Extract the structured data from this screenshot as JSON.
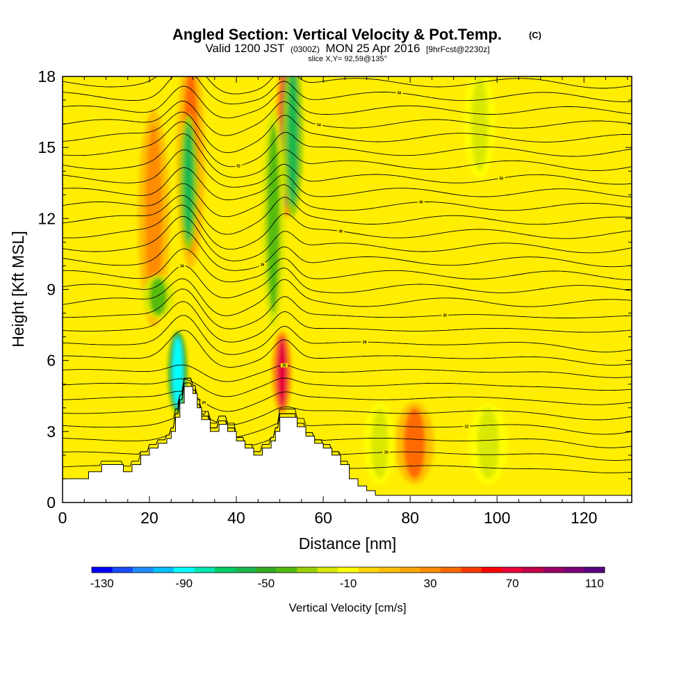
{
  "header": {
    "title": "Angled Section: Vertical Velocity & Pot.Temp.",
    "title_mark": "(C)",
    "valid_prefix": "Valid 1200 JST",
    "valid_zulu": "(0300Z)",
    "valid_date": "MON 25 Apr 2016",
    "forecast": "[9hrFcst@2230z]",
    "slice": "slice X,Y= 92,59@135°"
  },
  "chart_data": {
    "type": "heatmap",
    "xlabel": "Distance [nm]",
    "ylabel": "Height [Kft MSL]",
    "xlim": [
      0,
      131
    ],
    "ylim": [
      0,
      18
    ],
    "x_ticks": [
      "0",
      "20",
      "40",
      "60",
      "80",
      "100",
      "120"
    ],
    "y_ticks": [
      "0",
      "3",
      "6",
      "9",
      "12",
      "15",
      "18"
    ],
    "grid": false,
    "colorbar": {
      "title": "Vertical Velocity [cm/s]",
      "labels": [
        "-130",
        "-90",
        "-50",
        "-10",
        "30",
        "70",
        "110"
      ],
      "min": -130,
      "step": 10,
      "colors": [
        "#0000ff",
        "#1a4cff",
        "#1f8cff",
        "#00bfff",
        "#00ffff",
        "#00e5b0",
        "#00cc66",
        "#1ab84d",
        "#33aa22",
        "#55bb11",
        "#99d000",
        "#d9e800",
        "#ffff00",
        "#ffd700",
        "#ffbf00",
        "#ffa500",
        "#ff8c00",
        "#ff6a00",
        "#ff3a00",
        "#ff0000",
        "#e6003a",
        "#c0004a",
        "#990066",
        "#7a0077",
        "#5a0080"
      ]
    },
    "terrain": [
      [
        0,
        1.0
      ],
      [
        5,
        1.0
      ],
      [
        6,
        1.3
      ],
      [
        9,
        1.6
      ],
      [
        12,
        1.6
      ],
      [
        14,
        1.3
      ],
      [
        16,
        1.6
      ],
      [
        18,
        2.0
      ],
      [
        20,
        2.3
      ],
      [
        22,
        2.5
      ],
      [
        24,
        2.7
      ],
      [
        25,
        3.0
      ],
      [
        26,
        3.6
      ],
      [
        27,
        4.2
      ],
      [
        28,
        4.9
      ],
      [
        30,
        4.6
      ],
      [
        31,
        4.0
      ],
      [
        32,
        3.5
      ],
      [
        34,
        3.0
      ],
      [
        36,
        3.3
      ],
      [
        38,
        3.0
      ],
      [
        40,
        2.6
      ],
      [
        42,
        2.3
      ],
      [
        44,
        2.0
      ],
      [
        46,
        2.3
      ],
      [
        48,
        2.6
      ],
      [
        49,
        3.0
      ],
      [
        50,
        3.6
      ],
      [
        53,
        3.6
      ],
      [
        54,
        3.2
      ],
      [
        56,
        2.8
      ],
      [
        58,
        2.5
      ],
      [
        60,
        2.3
      ],
      [
        62,
        2.0
      ],
      [
        64,
        1.6
      ],
      [
        66,
        1.0
      ],
      [
        68,
        0.7
      ],
      [
        70,
        0.5
      ],
      [
        72,
        0.3
      ],
      [
        131,
        0.3
      ]
    ],
    "updrafts": [
      {
        "x": 51.5,
        "y": 15.5,
        "w": 1.3,
        "h": 3.0,
        "value": 80
      },
      {
        "x": 50.5,
        "y": 5.5,
        "w": 1.2,
        "h": 1.5,
        "value": 70
      },
      {
        "x": 29.5,
        "y": 14.5,
        "w": 1.8,
        "h": 4.0,
        "value": 40
      },
      {
        "x": 81,
        "y": 2.5,
        "w": 2.5,
        "h": 1.5,
        "value": 40
      },
      {
        "x": 21,
        "y": 12.0,
        "w": 2.0,
        "h": 4.0,
        "value": 30
      }
    ],
    "downdrafts": [
      {
        "x": 26.5,
        "y": 5.5,
        "w": 1.2,
        "h": 1.5,
        "value": -90
      },
      {
        "x": 29.0,
        "y": 13.5,
        "w": 1.2,
        "h": 2.5,
        "value": -60
      },
      {
        "x": 53.0,
        "y": 15.5,
        "w": 1.3,
        "h": 3.0,
        "value": -60
      },
      {
        "x": 48.5,
        "y": 12.0,
        "w": 1.5,
        "h": 4.0,
        "value": -40
      },
      {
        "x": 22.0,
        "y": 8.7,
        "w": 2.0,
        "h": 0.8,
        "value": -40
      },
      {
        "x": 96,
        "y": 16.0,
        "w": 2.0,
        "h": 2.0,
        "value": -20
      },
      {
        "x": 98,
        "y": 2.5,
        "w": 2.5,
        "h": 1.5,
        "value": -20
      },
      {
        "x": 73,
        "y": 2.5,
        "w": 2.0,
        "h": 1.5,
        "value": -20
      }
    ],
    "isentropes": {
      "values": [
        20,
        22,
        24,
        26,
        28,
        30,
        32,
        34,
        36,
        38,
        40,
        42,
        44,
        46,
        48,
        50,
        52,
        54,
        56,
        58,
        60,
        62,
        64,
        66,
        68,
        70,
        72,
        74,
        76
      ],
      "labeled": [
        "20",
        "22",
        "24",
        "26",
        "28",
        "30",
        "34",
        "36",
        "38",
        "40",
        "50",
        "52",
        "54",
        "56",
        "58",
        "60",
        "62",
        "64",
        "66",
        "68"
      ]
    }
  }
}
